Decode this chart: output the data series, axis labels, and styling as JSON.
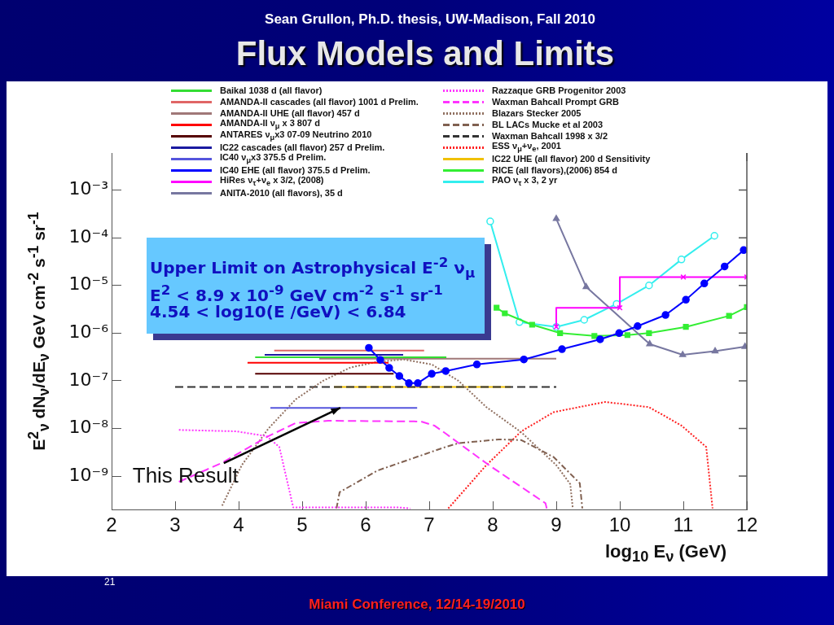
{
  "chart_data": {
    "type": "line",
    "title": "Flux Models and Limits",
    "subtitle": "Sean Grullon, Ph.D. thesis, UW-Madison, Fall 2010",
    "xlabel": "log$_{10}$ E$_{ν}$ (GeV)",
    "ylabel": "E$^{2}$$_{ν}$ dN$_{ν}$/dE$_{ν}$ GeV cm$^{-2}$ s$^{-1}$ sr$^{-1}$",
    "xlim": [
      2,
      12
    ],
    "xticks": [
      2,
      3,
      4,
      5,
      6,
      7,
      8,
      9,
      10,
      11,
      12
    ],
    "ylim": [
      2e-10,
      0.006
    ],
    "yticks": [
      {
        "value": 1e-09,
        "label": "10⁻⁹"
      },
      {
        "value": 1e-08,
        "label": "10⁻⁸"
      },
      {
        "value": 1e-07,
        "label": "10⁻⁷"
      },
      {
        "value": 1e-06,
        "label": "10⁻⁶"
      },
      {
        "value": 1e-05,
        "label": "10⁻⁵"
      },
      {
        "value": 0.0001,
        "label": "10⁻⁴"
      },
      {
        "value": 0.001,
        "label": "10⁻³"
      }
    ],
    "log": "y",
    "grid": false,
    "legend": "top",
    "annotations": [
      "Upper Limit on Astrophysical E$^{-2}$ ν$_{μ}$",
      "E$^{2}$  < 8.9 x 10$^{-9}$ GeV cm$^{-2}$ s$^{-1}$ sr$^{-1}$",
      "4.54 < log10(E /GeV) < 6.84",
      {
        "text": "This Result",
        "x": 5.6,
        "y": 2.7e-08
      },
      "Miami Conference, 12/14-19/2010",
      "21"
    ],
    "series": [
      {
        "name": "Baikal 1038 d (all flavor)",
        "color": "#33dd33",
        "x": [
          4.26,
          7.27
        ],
        "values": [
          3.1e-07,
          3.1e-07
        ]
      },
      {
        "name": "AMANDA-II cascades (all flavor) 1001 d Prelim.",
        "color": "#e06666",
        "x": [
          4.56,
          6.92
        ],
        "values": [
          4.3e-07,
          4.3e-07
        ]
      },
      {
        "name": "AMANDA-II UHE (all flavor) 457 d",
        "color": "#a07878",
        "x": [
          5.27,
          9.0
        ],
        "values": [
          2.9e-07,
          2.9e-07
        ]
      },
      {
        "name": "AMANDA-II ν$_{μ}$ x 3 807 d",
        "color": "#ff0000",
        "x": [
          4.14,
          6.36
        ],
        "values": [
          2.4e-07,
          2.4e-07
        ]
      },
      {
        "name": "ANTARES ν$_{μ}$x3 07-09 Neutrino 2010",
        "color": "#550000",
        "x": [
          4.26,
          6.44
        ],
        "values": [
          1.4e-07,
          1.4e-07
        ]
      },
      {
        "name": "IC22 cascades (all flavor) 257 d Prelim.",
        "color": "#1a1aa0",
        "x": [
          4.41,
          6.59
        ],
        "values": [
          3.5e-07,
          3.5e-07
        ]
      },
      {
        "name": "IC40 ν$_{μ}$x3 375.5 d Prelim.",
        "color": "#5555dd",
        "x": [
          4.5,
          6.81
        ],
        "values": [
          2.7e-08,
          2.7e-08
        ]
      },
      {
        "name": "IC40 EHE  (all flavor) 375.5 d Prelim.",
        "color": "#0000ff",
        "marker": "circle",
        "x": [
          6.05,
          6.23,
          6.37,
          6.53,
          6.68,
          6.82,
          7.04,
          7.26,
          7.75,
          8.49,
          9.09,
          9.69,
          9.99,
          10.28,
          10.72,
          11.04,
          11.33,
          11.65,
          11.95
        ],
        "values": [
          4.9e-07,
          2.75e-07,
          1.86e-07,
          1.26e-07,
          8.9e-08,
          8.9e-08,
          1.4e-07,
          1.6e-07,
          2.2e-07,
          2.8e-07,
          4.6e-07,
          7.4e-07,
          1e-06,
          1.4e-06,
          2.4e-06,
          5e-06,
          1.1e-05,
          2.5e-05,
          5.5e-05
        ]
      },
      {
        "name": "HiRes ν$_{τ}$+ν$_{e}$ x 3/2, (2008)",
        "color": "#ff00ff",
        "type": "step",
        "marker": "cross",
        "x": [
          9,
          10,
          11,
          12
        ],
        "values": [
          1.35e-06,
          3.4e-06,
          1.5e-05,
          1.5e-05
        ]
      },
      {
        "name": "ANITA-2010 (all flavors), 35 d",
        "color": "#7777a0",
        "marker": "triangle",
        "x": [
          9.0,
          9.47,
          10.47,
          10.99,
          11.5,
          11.97
        ],
        "values": [
          0.00025,
          9.3e-06,
          5.9e-07,
          3.5e-07,
          4.2e-07,
          5.2e-07
        ]
      },
      {
        "name": "Razzaque GRB Progenitor 2003",
        "color": "#ff33ff",
        "line_style": "dotted",
        "x": [
          3.06,
          3.96,
          4.44,
          4.64,
          4.86,
          6.53,
          6.7
        ],
        "values": [
          9.3e-09,
          8.7e-09,
          6.9e-09,
          4.1e-09,
          2.2e-10,
          2.2e-10,
          2.1e-10
        ]
      },
      {
        "name": "Waxman Bahcall Prompt GRB",
        "color": "#ff33ff",
        "line_style": "dashed",
        "x": [
          3.06,
          3.74,
          4.47,
          4.9,
          5.41,
          6.87,
          7.08,
          7.26,
          7.94,
          8.83,
          8.85
        ],
        "values": [
          7.6e-10,
          1.9e-09,
          6.9e-09,
          1.3e-08,
          1.45e-08,
          1.4e-08,
          1.15e-08,
          7.8e-09,
          1.7e-09,
          2.7e-10,
          2.1e-10
        ]
      },
      {
        "name": "Blazars Stecker 2005",
        "color": "#907060",
        "line_style": "dotted",
        "x": [
          3.74,
          4.05,
          4.47,
          4.9,
          5.33,
          5.76,
          6.18,
          6.6,
          7.04,
          7.46,
          7.9,
          8.45,
          9.0,
          9.22,
          9.26
        ],
        "values": [
          2.4e-10,
          1.7e-09,
          1e-08,
          4.1e-08,
          1e-07,
          1.9e-07,
          2.5e-07,
          2.8e-07,
          2.2e-07,
          1e-07,
          2.8e-08,
          8.3e-09,
          1.7e-09,
          6.8e-10,
          2.1e-10
        ]
      },
      {
        "name": "BL LACs Mucke et al 2003",
        "color": "#806050",
        "line_style": "dashdot",
        "x": [
          5.54,
          5.59,
          6.18,
          7.26,
          7.46,
          8.1,
          8.45,
          8.96,
          9.37,
          9.41
        ],
        "values": [
          2.1e-10,
          4.6e-10,
          1.3e-09,
          4.1e-09,
          4.9e-09,
          5.9e-09,
          5.7e-09,
          2.5e-09,
          7.1e-10,
          2.1e-10
        ]
      },
      {
        "name": "Waxman Bahcall 1998 x 3/2",
        "color": "#333333",
        "line_style": "dashed",
        "x": [
          3.0,
          9.0
        ],
        "values": [
          7.4e-08,
          7.4e-08
        ]
      },
      {
        "name": "ESS ν$_{μ}$+ν$_{e}$, 2001",
        "color": "#ff2020",
        "line_style": "dotted",
        "x": [
          7.3,
          7.9,
          8.45,
          8.96,
          9.77,
          10.46,
          10.97,
          11.36,
          11.46
        ],
        "values": [
          2.1e-10,
          1.7e-09,
          8.7e-09,
          2.2e-08,
          3.6e-08,
          2.8e-08,
          1.15e-08,
          4.1e-09,
          2.1e-10
        ]
      },
      {
        "name": "IC22 UHE  (all flavor) 200 d Sensitivity",
        "color": "#f0c000",
        "x": [
          5.5,
          8.28
        ],
        "values": [
          7.4e-08,
          7.4e-08
        ]
      },
      {
        "name": "RICE (all flavors),(2006) 854 d",
        "color": "#33ee33",
        "marker": "square",
        "x": [
          8.06,
          8.19,
          8.62,
          9.06,
          9.6,
          10.12,
          10.46,
          11.04,
          11.72,
          12.0
        ],
        "values": [
          3.4e-06,
          2.6e-06,
          1.5e-06,
          1e-06,
          8.7e-07,
          9.1e-07,
          1e-06,
          1.35e-06,
          2.3e-06,
          3.5e-06
        ]
      },
      {
        "name": "PAO ν$_{τ}$ x 3, 2 yr",
        "color": "#33eeee",
        "marker": "circle",
        "x": [
          7.96,
          8.42,
          9.0,
          9.44,
          9.95,
          10.46,
          10.97,
          11.49
        ],
        "values": [
          0.00022,
          1.7e-06,
          1.35e-06,
          1.9e-06,
          4.1e-06,
          1e-05,
          3.5e-05,
          0.00011
        ]
      }
    ]
  }
}
